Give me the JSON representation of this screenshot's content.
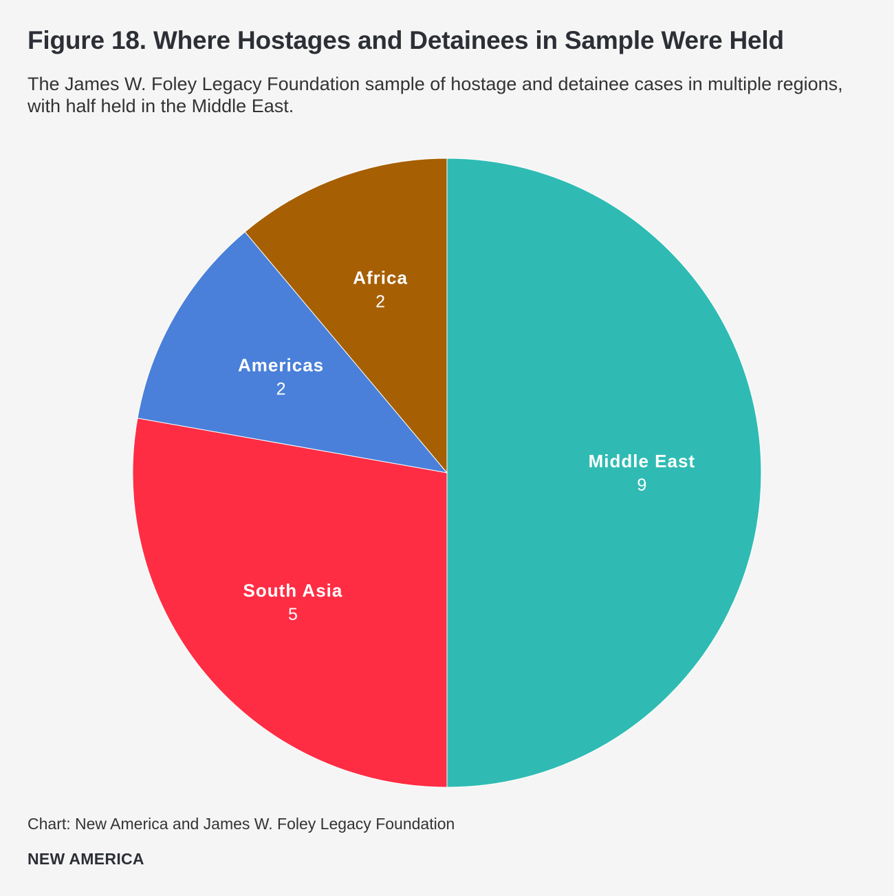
{
  "title": "Figure 18. Where Hostages and Detainees in Sample Were Held",
  "subtitle": "The James W. Foley Legacy Foundation sample of hostage and detainee cases in multiple regions, with half held in the Middle East.",
  "source": "Chart: New America and James W. Foley Legacy Foundation",
  "brand": "NEW AMERICA",
  "chart_data": {
    "type": "pie",
    "title": "Figure 18. Where Hostages and Detainees in Sample Were Held",
    "slices": [
      {
        "label": "Middle East",
        "value": 9,
        "color": "#2fbbb3"
      },
      {
        "label": "South Asia",
        "value": 5,
        "color": "#ff2d44"
      },
      {
        "label": "Americas",
        "value": 2,
        "color": "#4a80d9"
      },
      {
        "label": "Africa",
        "value": 2,
        "color": "#a65f03"
      }
    ],
    "start": "12 o'clock",
    "direction": "clockwise",
    "legend": "none",
    "data_labels": "inside"
  }
}
